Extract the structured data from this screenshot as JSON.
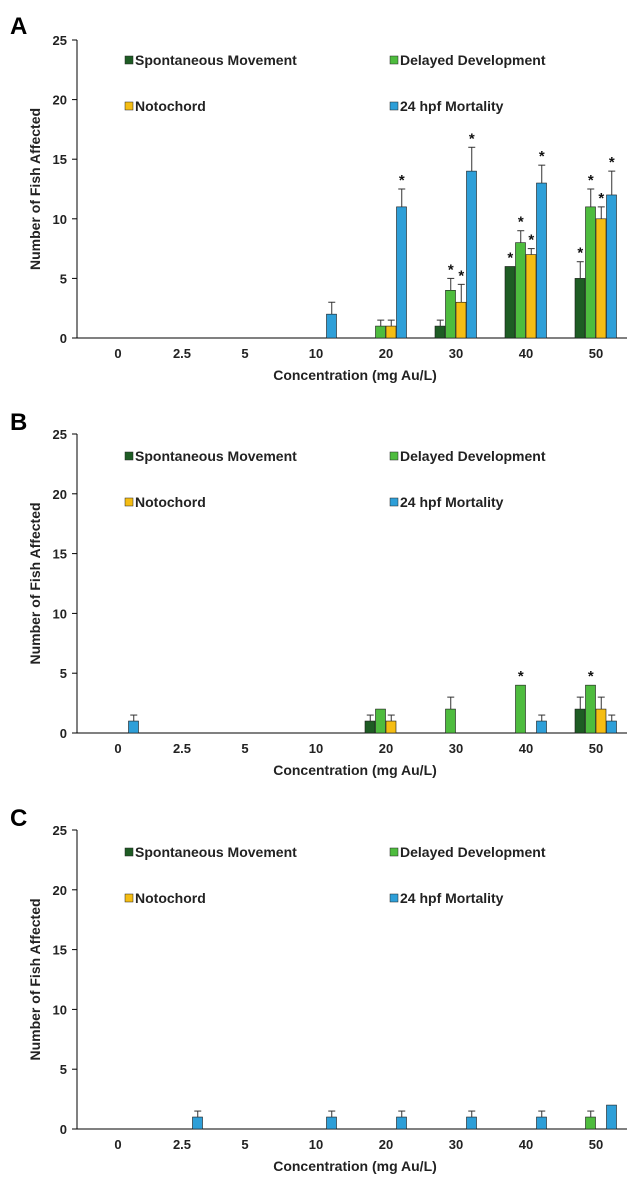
{
  "colors": {
    "spontaneous": "#1e5c24",
    "delayed": "#4ebc3e",
    "notochord": "#f5bd13",
    "mortality": "#2e9fd8",
    "axis": "#000000",
    "error": "#333333"
  },
  "legend_labels": [
    "Spontaneous Movement",
    "Delayed Development",
    "Notochord",
    "24 hpf Mortality"
  ],
  "chart_data": [
    {
      "panel": "A",
      "type": "bar",
      "categories": [
        "0",
        "2.5",
        "5",
        "10",
        "20",
        "30",
        "40",
        "50"
      ],
      "xlabel": "Concentration (mg Au/L)",
      "ylabel": "Number of Fish Affected",
      "ylim": [
        0,
        25
      ],
      "yticks": [
        0,
        5,
        10,
        15,
        20,
        25
      ],
      "grid": false,
      "legend": "top",
      "series": [
        {
          "name": "Spontaneous Movement",
          "values": [
            0,
            0,
            0,
            0,
            0,
            1,
            6,
            5
          ],
          "errors": [
            0,
            0,
            0,
            0,
            0,
            0.5,
            0,
            1.4
          ],
          "stars": [
            false,
            false,
            false,
            false,
            false,
            false,
            true,
            true
          ]
        },
        {
          "name": "Delayed Development",
          "values": [
            0,
            0,
            0,
            0,
            1,
            4,
            8,
            11
          ],
          "errors": [
            0,
            0,
            0,
            0,
            0.5,
            1,
            1,
            1.5
          ],
          "stars": [
            false,
            false,
            false,
            false,
            false,
            true,
            true,
            true
          ]
        },
        {
          "name": "Notochord",
          "values": [
            0,
            0,
            0,
            0,
            1,
            3,
            7,
            10
          ],
          "errors": [
            0,
            0,
            0,
            0,
            0.5,
            1.5,
            0.5,
            1
          ],
          "stars": [
            false,
            false,
            false,
            false,
            false,
            true,
            true,
            true
          ]
        },
        {
          "name": "24 hpf Mortality",
          "values": [
            0,
            0,
            0,
            2,
            11,
            14,
            13,
            12
          ],
          "errors": [
            0,
            0,
            0,
            1,
            1.5,
            2,
            1.5,
            2
          ],
          "stars": [
            false,
            false,
            false,
            false,
            true,
            true,
            true,
            true
          ]
        }
      ]
    },
    {
      "panel": "B",
      "type": "bar",
      "categories": [
        "0",
        "2.5",
        "5",
        "10",
        "20",
        "30",
        "40",
        "50"
      ],
      "xlabel": "Concentration (mg Au/L)",
      "ylabel": "Number of Fish Affected",
      "ylim": [
        0,
        25
      ],
      "yticks": [
        0,
        5,
        10,
        15,
        20,
        25
      ],
      "grid": false,
      "legend": "top",
      "series": [
        {
          "name": "Spontaneous Movement",
          "values": [
            0,
            0,
            0,
            0,
            1,
            0,
            0,
            2
          ],
          "errors": [
            0,
            0,
            0,
            0,
            0.5,
            0,
            0,
            1
          ],
          "stars": [
            false,
            false,
            false,
            false,
            false,
            false,
            false,
            false
          ]
        },
        {
          "name": "Delayed Development",
          "values": [
            0,
            0,
            0,
            0,
            2,
            2,
            4,
            4
          ],
          "errors": [
            0,
            0,
            0,
            0,
            0,
            1,
            0,
            0
          ],
          "stars": [
            false,
            false,
            false,
            false,
            false,
            false,
            true,
            true
          ]
        },
        {
          "name": "Notochord",
          "values": [
            0,
            0,
            0,
            0,
            1,
            0,
            0,
            2
          ],
          "errors": [
            0,
            0,
            0,
            0,
            0.5,
            0,
            0,
            1
          ],
          "stars": [
            false,
            false,
            false,
            false,
            false,
            false,
            false,
            false
          ]
        },
        {
          "name": "24 hpf Mortality",
          "values": [
            1,
            0,
            0,
            0,
            0,
            0,
            1,
            1
          ],
          "errors": [
            0.5,
            0,
            0,
            0,
            0,
            0,
            0.5,
            0.5
          ],
          "stars": [
            false,
            false,
            false,
            false,
            false,
            false,
            false,
            false
          ]
        }
      ]
    },
    {
      "panel": "C",
      "type": "bar",
      "categories": [
        "0",
        "2.5",
        "5",
        "10",
        "20",
        "30",
        "40",
        "50"
      ],
      "xlabel": "Concentration (mg Au/L)",
      "ylabel": "Number of Fish Affected",
      "ylim": [
        0,
        25
      ],
      "yticks": [
        0,
        5,
        10,
        15,
        20,
        25
      ],
      "grid": false,
      "legend": "top",
      "series": [
        {
          "name": "Spontaneous Movement",
          "values": [
            0,
            0,
            0,
            0,
            0,
            0,
            0,
            0
          ],
          "errors": [
            0,
            0,
            0,
            0,
            0,
            0,
            0,
            0
          ],
          "stars": [
            false,
            false,
            false,
            false,
            false,
            false,
            false,
            false
          ]
        },
        {
          "name": "Delayed Development",
          "values": [
            0,
            0,
            0,
            0,
            0,
            0,
            0,
            1
          ],
          "errors": [
            0,
            0,
            0,
            0,
            0,
            0,
            0,
            0.5
          ],
          "stars": [
            false,
            false,
            false,
            false,
            false,
            false,
            false,
            false
          ]
        },
        {
          "name": "Notochord",
          "values": [
            0,
            0,
            0,
            0,
            0,
            0,
            0,
            0
          ],
          "errors": [
            0,
            0,
            0,
            0,
            0,
            0,
            0,
            0
          ],
          "stars": [
            false,
            false,
            false,
            false,
            false,
            false,
            false,
            false
          ]
        },
        {
          "name": "24 hpf Mortality",
          "values": [
            0,
            1,
            0,
            1,
            1,
            1,
            1,
            2
          ],
          "errors": [
            0,
            0.5,
            0,
            0.5,
            0.5,
            0.5,
            0.5,
            0
          ],
          "stars": [
            false,
            false,
            false,
            false,
            false,
            false,
            false,
            false
          ]
        }
      ]
    }
  ]
}
